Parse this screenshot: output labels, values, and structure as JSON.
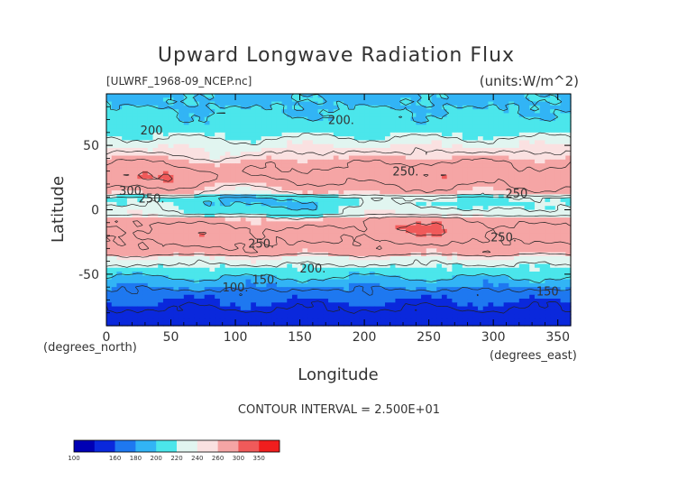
{
  "chart_data": {
    "type": "heatmap",
    "title": "Upward Longwave Radiation Flux",
    "subtitle_left": "[ULWRF_1968-09_NCEP.nc]",
    "subtitle_right": "(units:W/m^2)",
    "xlabel": "Longitude",
    "ylabel": "Latitude",
    "x_unit_label": "(degrees_east)",
    "y_unit_label": "(degrees_north)",
    "xlim": [
      0,
      360
    ],
    "ylim": [
      -90,
      90
    ],
    "x_ticks": [
      0,
      50,
      100,
      150,
      200,
      250,
      300,
      350
    ],
    "y_ticks": [
      -50,
      0,
      50
    ],
    "contour_interval_text": "CONTOUR INTERVAL = 2.500E+01",
    "contour_labels": [
      {
        "text": "200.",
        "lon": 182,
        "lat": 70
      },
      {
        "text": "200",
        "lon": 35,
        "lat": 62
      },
      {
        "text": "250.",
        "lon": 232,
        "lat": 30
      },
      {
        "text": "250",
        "lon": 318,
        "lat": 13
      },
      {
        "text": "300.",
        "lon": 20,
        "lat": 15
      },
      {
        "text": "250.",
        "lon": 35,
        "lat": 9
      },
      {
        "text": "250.",
        "lon": 120,
        "lat": -26
      },
      {
        "text": "250.",
        "lon": 308,
        "lat": -21
      },
      {
        "text": "200.",
        "lon": 160,
        "lat": -45
      },
      {
        "text": "100.",
        "lon": 100,
        "lat": -60
      },
      {
        "text": "150.",
        "lon": 123,
        "lat": -54
      },
      {
        "text": "150",
        "lon": 342,
        "lat": -63
      }
    ],
    "colorbar": {
      "levels": [
        100,
        160,
        180,
        200,
        220,
        240,
        260,
        300,
        350
      ],
      "colors": [
        "#0000b4",
        "#0a28dc",
        "#1e78f0",
        "#32b4f5",
        "#4be6eb",
        "#e1f5f0",
        "#fae1e1",
        "#f5a5a5",
        "#f05a5a",
        "#f01e1e"
      ]
    },
    "field_description": "Banded upward longwave flux: ~100-150 W/m^2 over Antarctica, 200-220 at high latitudes, 250-300+ in subtropical belts"
  }
}
